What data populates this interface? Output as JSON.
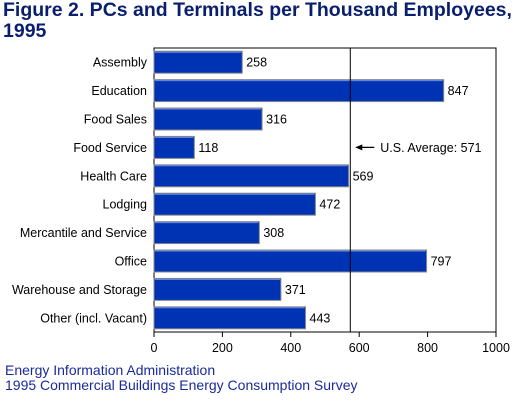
{
  "title": "Figure 2.  PCs and Terminals per Thousand Employees, 1995",
  "chart_data": {
    "type": "bar",
    "orientation": "horizontal",
    "categories": [
      "Assembly",
      "Education",
      "Food Sales",
      "Food Service",
      "Health Care",
      "Lodging",
      "Mercantile and Service",
      "Office",
      "Warehouse and Storage",
      "Other (incl. Vacant)"
    ],
    "values": [
      258,
      847,
      316,
      118,
      569,
      472,
      308,
      797,
      371,
      443
    ],
    "xlim": [
      0,
      1000
    ],
    "xticks": [
      0,
      200,
      400,
      600,
      800,
      1000
    ],
    "reference_line": {
      "value": 571,
      "label": "U.S. Average: 571"
    },
    "bar_color": "#0033b3",
    "grid": false
  },
  "source": {
    "line1": "Energy Information Administration",
    "line2": "1995 Commercial Buildings Energy Consumption Survey"
  }
}
